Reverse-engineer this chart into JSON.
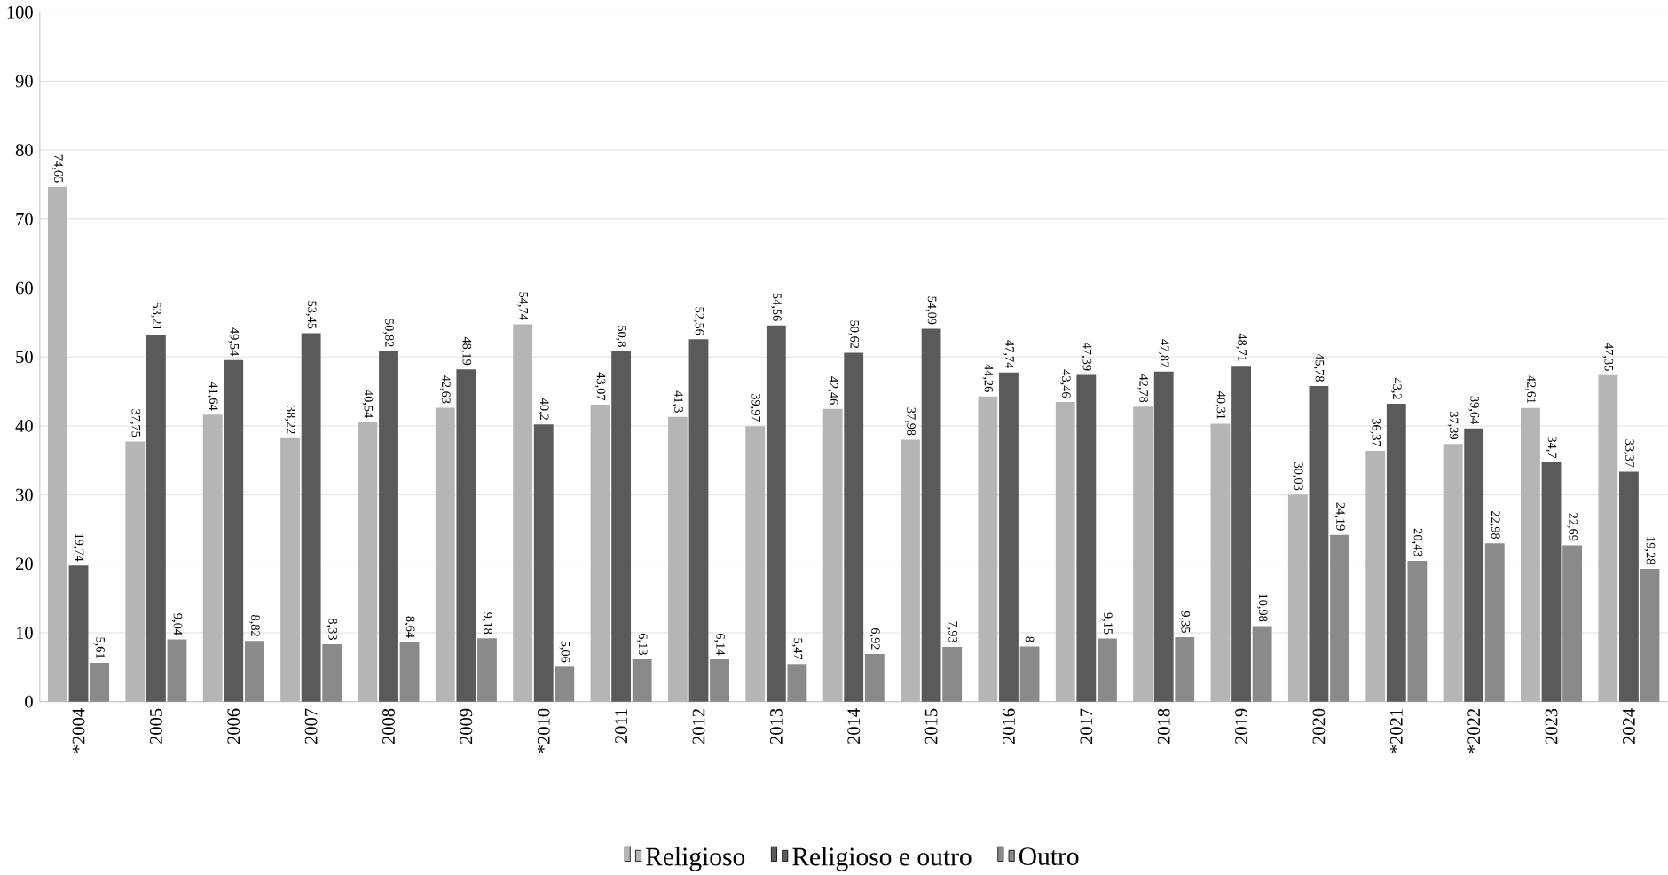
{
  "chart_data": {
    "type": "bar",
    "categories": [
      "*2004",
      "2005",
      "2006",
      "2007",
      "2008",
      "2009",
      "*2010",
      "2011",
      "2012",
      "2013",
      "2014",
      "2015",
      "2016",
      "2017",
      "2018",
      "2019",
      "2020",
      "*2021",
      "*2022",
      "2023",
      "2024"
    ],
    "series": [
      {
        "name": "Religioso",
        "color": "#b5b5b5",
        "values": [
          74.65,
          37.75,
          41.64,
          38.22,
          40.54,
          42.63,
          54.74,
          43.07,
          41.3,
          39.97,
          42.46,
          37.98,
          44.26,
          43.46,
          42.78,
          40.31,
          30.03,
          36.37,
          37.39,
          42.61,
          47.35
        ],
        "value_labels": [
          "74,65",
          "37,75",
          "41,64",
          "38,22",
          "40,54",
          "42,63",
          "54,74",
          "43,07",
          "41,3",
          "39,97",
          "42,46",
          "37,98",
          "44,26",
          "43,46",
          "42,78",
          "40,31",
          "30,03",
          "36,37",
          "37,39",
          "42,61",
          "47,35"
        ]
      },
      {
        "name": "Religioso e outro",
        "color": "#5a5a5a",
        "values": [
          19.74,
          53.21,
          49.54,
          53.45,
          50.82,
          48.19,
          40.2,
          50.8,
          52.56,
          54.56,
          50.62,
          54.09,
          47.74,
          47.39,
          47.87,
          48.71,
          45.78,
          43.2,
          39.64,
          34.7,
          33.37
        ],
        "value_labels": [
          "19,74",
          "53,21",
          "49,54",
          "53,45",
          "50,82",
          "48,19",
          "40,2",
          "50,8",
          "52,56",
          "54,56",
          "50,62",
          "54,09",
          "47,74",
          "47,39",
          "47,87",
          "48,71",
          "45,78",
          "43,2",
          "39,64",
          "34,7",
          "33,37"
        ]
      },
      {
        "name": "Outro",
        "color": "#8a8a8a",
        "values": [
          5.61,
          9.04,
          8.82,
          8.33,
          8.64,
          9.18,
          5.06,
          6.13,
          6.14,
          5.47,
          6.92,
          7.93,
          8,
          9.15,
          9.35,
          10.98,
          24.19,
          20.43,
          22.98,
          22.69,
          19.28
        ],
        "value_labels": [
          "5,61",
          "9,04",
          "8,82",
          "8,33",
          "8,64",
          "9,18",
          "5,06",
          "6,13",
          "6,14",
          "5,47",
          "6,92",
          "7,93",
          "8",
          "9,15",
          "9,35",
          "10,98",
          "24,19",
          "20,43",
          "22,98",
          "22,69",
          "19,28"
        ]
      }
    ],
    "ylim": [
      0,
      100
    ],
    "yticks": [
      0,
      10,
      20,
      30,
      40,
      50,
      60,
      70,
      80,
      90,
      100
    ],
    "grid": "y",
    "legend": "bottom"
  }
}
